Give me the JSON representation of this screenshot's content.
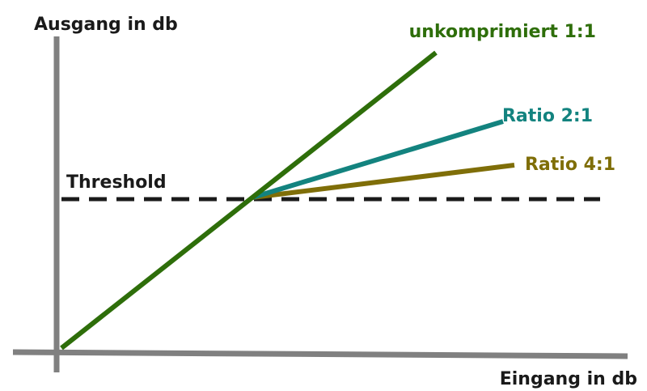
{
  "labels": {
    "y_axis": "Ausgang in db",
    "x_axis": "Eingang in db",
    "threshold": "Threshold"
  },
  "curves": {
    "unkomprimiert": {
      "label": "unkomprimiert 1:1",
      "color": "#2e6e0a"
    },
    "ratio2": {
      "label": "Ratio 2:1",
      "color": "#13837f"
    },
    "ratio4": {
      "label": "Ratio 4:1",
      "color": "#7f6e08"
    }
  },
  "colors": {
    "axes": "#808080",
    "threshold_line": "#1a1a1a",
    "text": "#1a1a1a"
  }
}
